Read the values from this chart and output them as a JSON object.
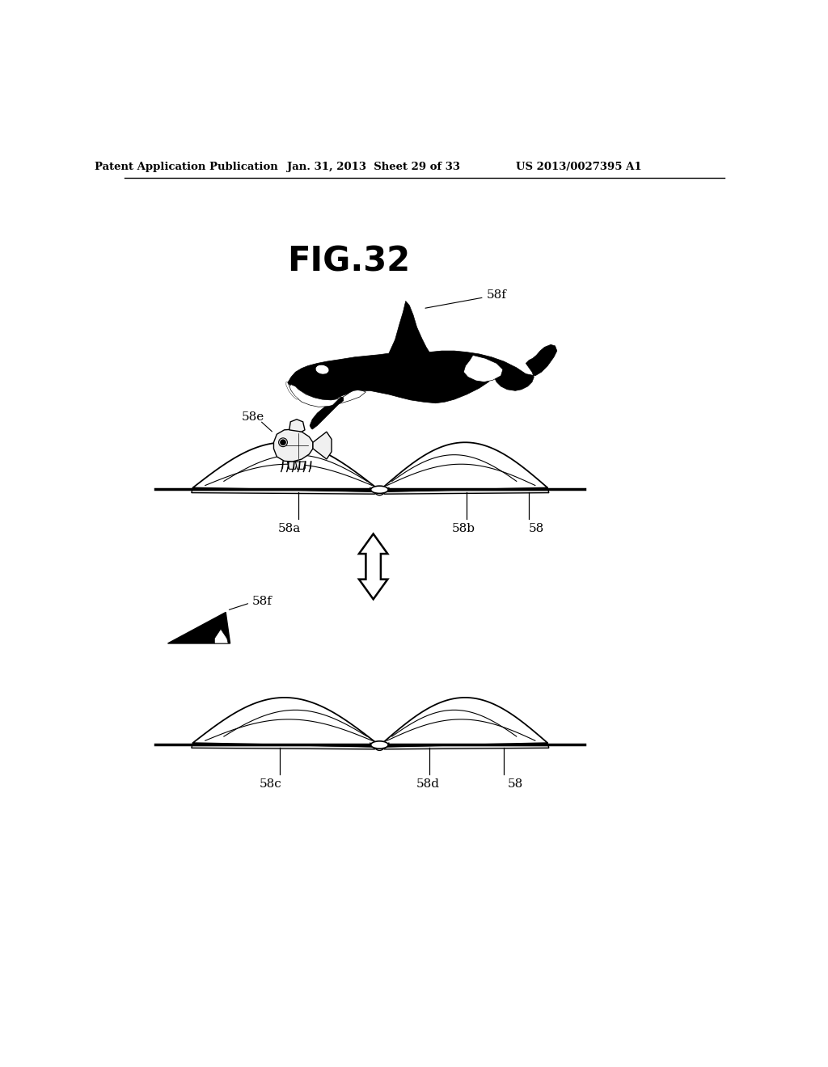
{
  "title": "FIG.32",
  "header_left": "Patent Application Publication",
  "header_mid": "Jan. 31, 2013  Sheet 29 of 33",
  "header_right": "US 2013/0027395 A1",
  "bg_color": "#ffffff",
  "labels": {
    "58f_top": "58f",
    "58e": "58e",
    "58a": "58a",
    "58b": "58b",
    "58_top": "58",
    "58f_bot": "58f",
    "58c": "58c",
    "58d": "58d",
    "58_bot": "58"
  },
  "fig_label": "FIG.32"
}
